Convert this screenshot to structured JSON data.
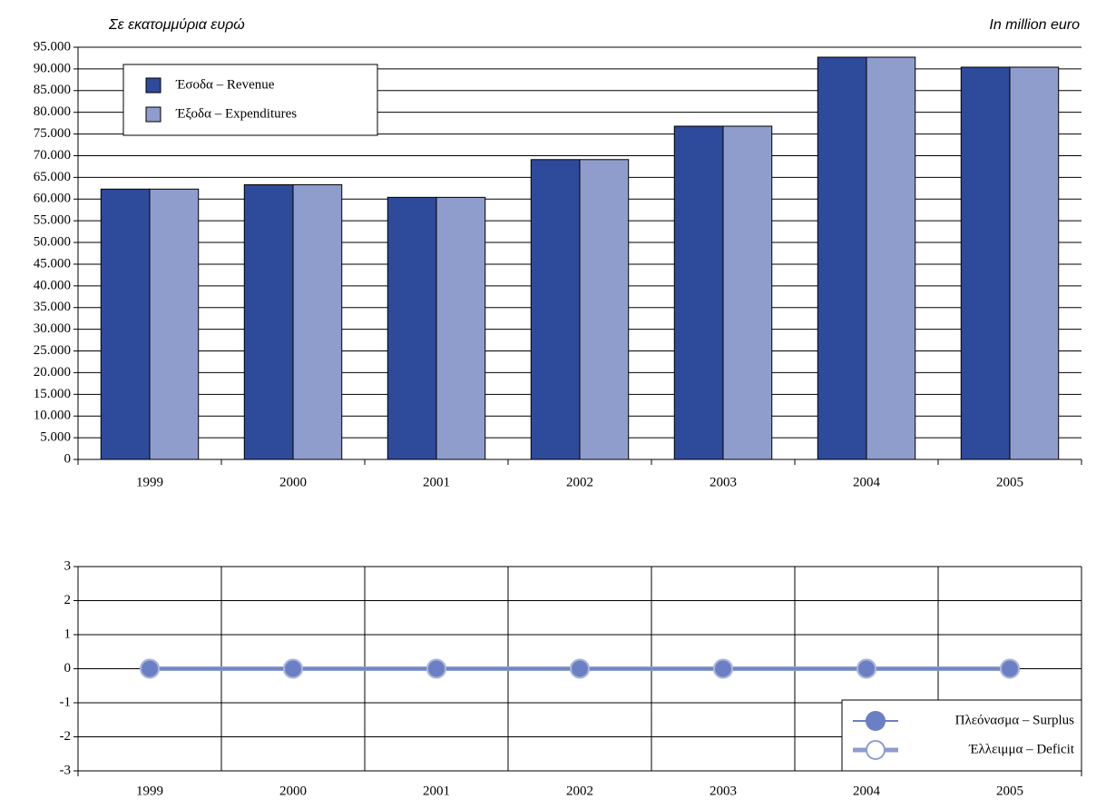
{
  "chart_data": [
    {
      "type": "bar",
      "annotations": [
        "Σε εκατομμύρια ευρώ",
        "In million euro"
      ],
      "categories": [
        "1999",
        "2000",
        "2001",
        "2002",
        "2003",
        "2004",
        "2005"
      ],
      "series": [
        {
          "name": "Έσοδα – Revenue",
          "color": "#2e4a9b",
          "values": [
            62300,
            63300,
            60400,
            69100,
            76800,
            92700,
            90400
          ]
        },
        {
          "name": "Έξοδα – Expenditures",
          "color": "#8f9dcc",
          "values": [
            62300,
            63300,
            60400,
            69100,
            76800,
            92700,
            90400
          ]
        }
      ],
      "ylim": [
        0,
        95000
      ],
      "yticks": [
        0,
        {
          "value": 5000,
          "label": "5.000"
        },
        {
          "value": 10000,
          "label": "10.000"
        },
        {
          "value": 15000,
          "label": "15.000"
        },
        {
          "value": 20000,
          "label": "20.000"
        },
        {
          "value": 25000,
          "label": "25.000"
        },
        {
          "value": 30000,
          "label": "30.000"
        },
        {
          "value": 35000,
          "label": "35.000"
        },
        {
          "value": 40000,
          "label": "40.000"
        },
        {
          "value": 45000,
          "label": "45.000"
        },
        {
          "value": 50000,
          "label": "50.000"
        },
        {
          "value": 55000,
          "label": "55.000"
        },
        {
          "value": 60000,
          "label": "60.000"
        },
        {
          "value": 65000,
          "label": "65.000"
        },
        {
          "value": 70000,
          "label": "70.000"
        },
        {
          "value": 75000,
          "label": "75.000"
        },
        {
          "value": 80000,
          "label": "80.000"
        },
        {
          "value": 85000,
          "label": "85.000"
        },
        {
          "value": 90000,
          "label": "90.000"
        },
        {
          "value": 95000,
          "label": "95.000"
        }
      ],
      "grid": true,
      "x_grid": false,
      "legend": "upper left"
    },
    {
      "type": "line",
      "categories": [
        "1999",
        "2000",
        "2001",
        "2002",
        "2003",
        "2004",
        "2005"
      ],
      "series": [
        {
          "name": "Πλεόνασμα – Surplus",
          "color": "#6b7fc4",
          "marker": "filled",
          "values": [
            0,
            0,
            0,
            0,
            0,
            0,
            0
          ]
        },
        {
          "name": "Έλλειμμα – Deficit",
          "color": "#8f9dcc",
          "marker": "open",
          "values": [
            0,
            0,
            0,
            0,
            0,
            0,
            0
          ]
        }
      ],
      "ylim": [
        -3,
        3
      ],
      "yticks": [
        -3,
        -2,
        -1,
        0,
        1,
        2,
        3
      ],
      "grid": true,
      "x_grid": true,
      "legend": "lower right"
    }
  ]
}
